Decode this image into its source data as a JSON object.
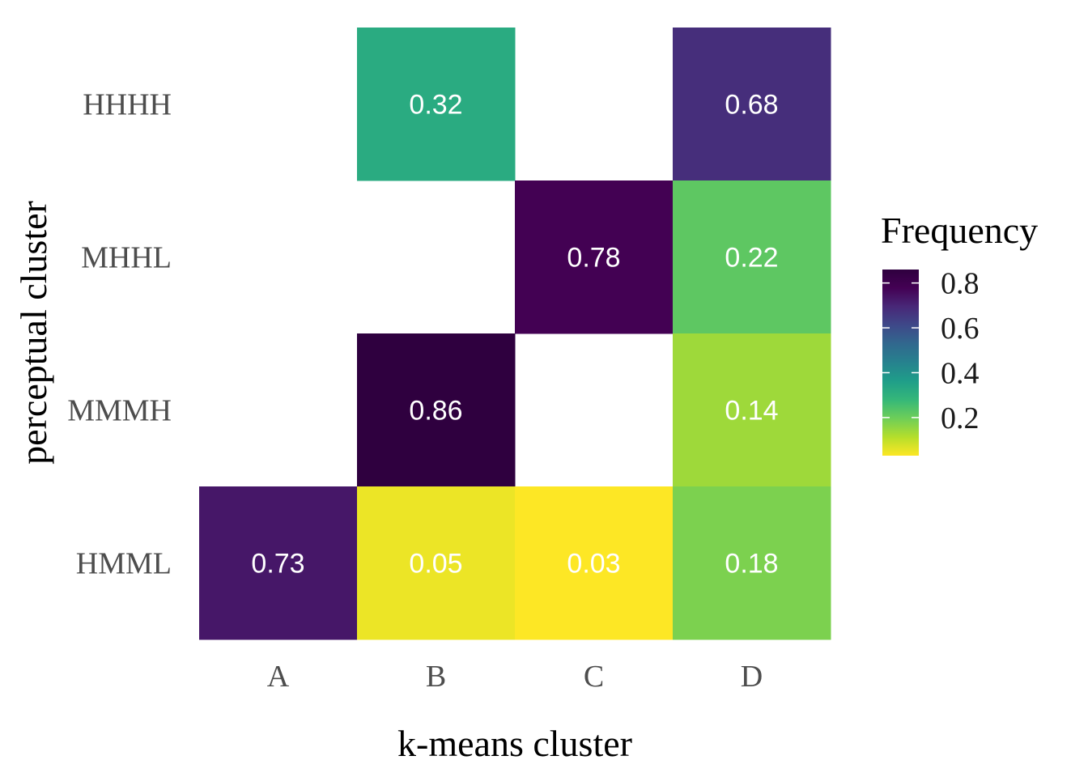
{
  "chart_data": {
    "type": "heatmap",
    "title": "",
    "xlabel": "k-means cluster",
    "ylabel": "perceptual cluster",
    "x_categories": [
      "A",
      "B",
      "C",
      "D"
    ],
    "y_categories": [
      "HHHH",
      "MHHL",
      "MMMH",
      "HMML"
    ],
    "cells": [
      {
        "x": "B",
        "y": "HHHH",
        "value": 0.32,
        "label": "0.32"
      },
      {
        "x": "D",
        "y": "HHHH",
        "value": 0.68,
        "label": "0.68"
      },
      {
        "x": "C",
        "y": "MHHL",
        "value": 0.78,
        "label": "0.78"
      },
      {
        "x": "D",
        "y": "MHHL",
        "value": 0.22,
        "label": "0.22"
      },
      {
        "x": "B",
        "y": "MMMH",
        "value": 0.86,
        "label": "0.86"
      },
      {
        "x": "D",
        "y": "MMMH",
        "value": 0.14,
        "label": "0.14"
      },
      {
        "x": "A",
        "y": "HMML",
        "value": 0.73,
        "label": "0.73"
      },
      {
        "x": "B",
        "y": "HMML",
        "value": 0.05,
        "label": "0.05"
      },
      {
        "x": "C",
        "y": "HMML",
        "value": 0.03,
        "label": "0.03"
      },
      {
        "x": "D",
        "y": "HMML",
        "value": 0.18,
        "label": "0.18"
      }
    ],
    "legend": {
      "title": "Frequency",
      "placement": "right",
      "range": [
        0.03,
        0.86
      ],
      "ticks": [
        0.2,
        0.4,
        0.6,
        0.8
      ],
      "tick_labels": [
        "0.2",
        "0.4",
        "0.6",
        "0.8"
      ],
      "reversed": true
    },
    "colormap": "viridis-reversed",
    "cell_text_color": "#ffffff",
    "grid": false
  }
}
